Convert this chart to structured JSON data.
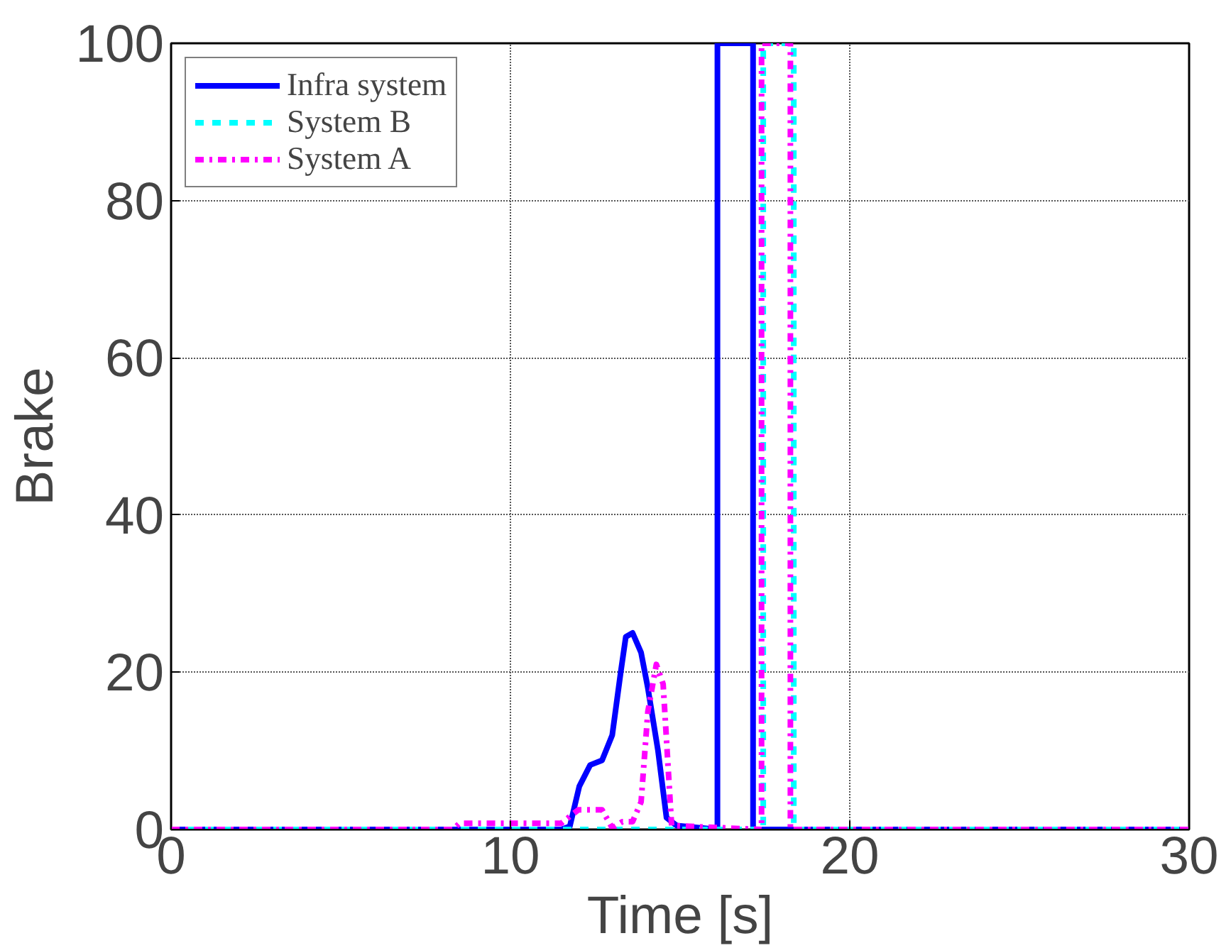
{
  "chart_data": {
    "type": "line",
    "xlabel": "Time [s]",
    "ylabel": "Brake",
    "xlim": [
      0,
      30
    ],
    "ylim": [
      0,
      100
    ],
    "xticks": [
      0,
      10,
      20,
      30
    ],
    "yticks": [
      0,
      20,
      40,
      60,
      80,
      100
    ],
    "grid": true,
    "legend": "top left",
    "marker": "none",
    "series": [
      {
        "name": "Infra system",
        "color": "#0000ff",
        "line_style": "solid",
        "x": [
          0,
          11.5,
          11.75,
          12.03,
          12.35,
          12.7,
          13.0,
          13.25,
          13.4,
          13.6,
          13.85,
          14.05,
          14.35,
          14.6,
          14.9,
          16.1,
          16.1,
          17.15,
          17.15,
          30
        ],
        "values": [
          0,
          0,
          0.4,
          5.5,
          8.2,
          8.8,
          12,
          20,
          24.5,
          25,
          22.5,
          18,
          10,
          1.5,
          0.5,
          0,
          100,
          100,
          0,
          0
        ]
      },
      {
        "name": "System B",
        "color": "#00ffff",
        "line_style": "dashed",
        "x": [
          0,
          17.45,
          17.45,
          18.35,
          18.35,
          30
        ],
        "values": [
          0,
          0,
          100,
          100,
          0,
          0
        ]
      },
      {
        "name": "System A",
        "color": "#ff00ff",
        "line_style": "dashdot",
        "x": [
          0,
          8.3,
          8.5,
          11.5,
          12.0,
          12.7,
          13.0,
          13.3,
          13.6,
          13.85,
          14.05,
          14.3,
          14.5,
          14.75,
          17.4,
          17.4,
          18.25,
          18.25,
          30
        ],
        "values": [
          0,
          0,
          0.8,
          0.8,
          2.5,
          2.5,
          0.2,
          1,
          1,
          3.5,
          15,
          21,
          18.5,
          0.5,
          0,
          100,
          100,
          0,
          0
        ]
      }
    ]
  }
}
